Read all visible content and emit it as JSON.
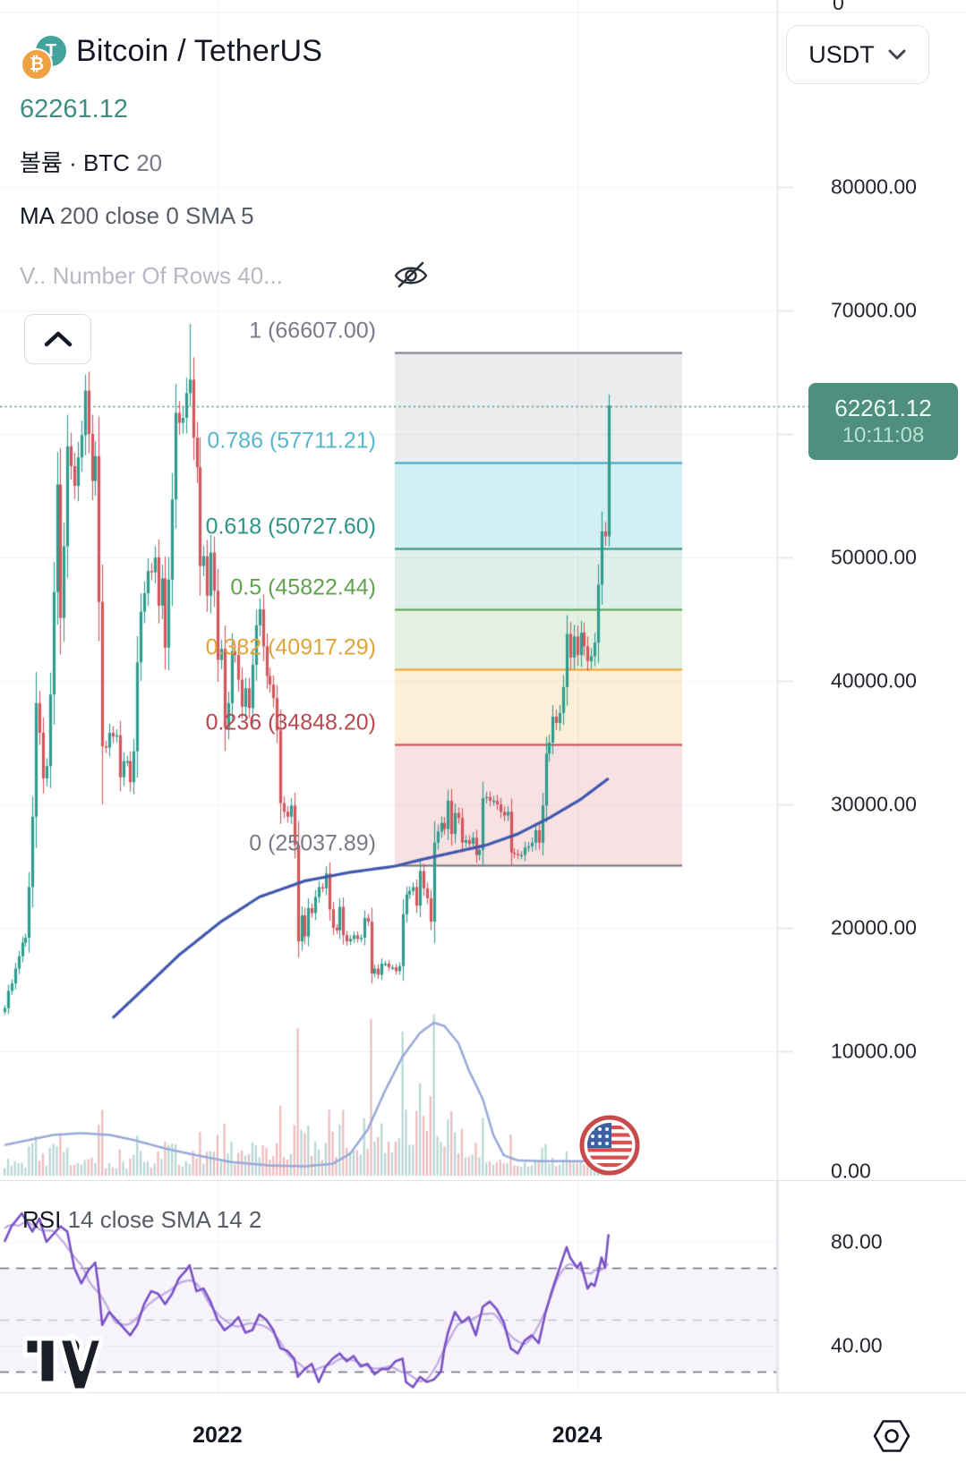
{
  "header": {
    "symbol": "Bitcoin / TetherUS",
    "last_price": "62261.12",
    "row2_label": "볼륨 · BTC",
    "row2_value": "20",
    "row3_prefix": "MA",
    "row3_rest": "200 close 0 SMA 5",
    "row4_text": "V.. Number Of Rows 40...",
    "currency_button": "USDT"
  },
  "icons": {
    "tether_glyph": "T",
    "bitcoin_glyph": "₿"
  },
  "price_scale": {
    "top_partial": "0",
    "labels": [
      {
        "text": "80000.00",
        "value": 80000
      },
      {
        "text": "70000.00",
        "value": 70000
      },
      {
        "text": "50000.00",
        "value": 50000
      },
      {
        "text": "40000.00",
        "value": 40000
      },
      {
        "text": "30000.00",
        "value": 30000
      },
      {
        "text": "20000.00",
        "value": 20000
      },
      {
        "text": "10000.00",
        "value": 10000
      }
    ],
    "volume_zero_label": {
      "text": "0.00"
    },
    "badge": {
      "price": "62261.12",
      "time": "10:11:08",
      "color": "#4e8f7e"
    }
  },
  "rsi_panel": {
    "title_prefix": "RSI",
    "title_rest": "14 close SMA 14 2",
    "labels": [
      {
        "text": "80.00",
        "value": 80
      },
      {
        "text": "40.00",
        "value": 40
      }
    ],
    "band": {
      "upper": 70,
      "mid": 50,
      "lower": 30
    },
    "line_color": "#7a52c5",
    "sma_color": "#c0abe4",
    "band_fill": "rgba(122,81,198,0.07)"
  },
  "time_axis": {
    "labels": [
      {
        "text": "2022",
        "week": 61
      },
      {
        "text": "2024",
        "week": 164
      }
    ]
  },
  "fib": {
    "levels": [
      {
        "level": "1",
        "price": "66607.00",
        "value": 66607.0,
        "line_color": "#787b86",
        "label_color": "#787b86",
        "fill": "rgba(133,136,145,0.16)"
      },
      {
        "level": "0.786",
        "price": "57711.21",
        "value": 57711.21,
        "line_color": "#3aa3bc",
        "label_color": "#58b6cb",
        "fill": "rgba(77,190,212,0.25)"
      },
      {
        "level": "0.618",
        "price": "50727.60",
        "value": 50727.6,
        "line_color": "#2a8d7b",
        "label_color": "#2f9386",
        "fill": "rgba(54,150,128,0.15)"
      },
      {
        "level": "0.5",
        "price": "45822.44",
        "value": 45822.44,
        "line_color": "#57a253",
        "label_color": "#61a24f",
        "fill": "rgba(118,184,101,0.20)"
      },
      {
        "level": "0.382",
        "price": "40917.29",
        "value": 40917.29,
        "line_color": "#eea12c",
        "label_color": "#e0a339",
        "fill": "rgba(247,184,72,0.22)"
      },
      {
        "level": "0.236",
        "price": "34848.20",
        "value": 34848.2,
        "line_color": "#bf4a4e",
        "label_color": "#b8494f",
        "fill": "rgba(219,106,114,0.20)"
      },
      {
        "level": "0",
        "price": "25037.89",
        "value": 25037.89,
        "line_color": "#6e717c",
        "label_color": "#787b86",
        "fill": null
      }
    ]
  },
  "chart_data": {
    "type": "bar",
    "subtype": "candlestick-weekly with volume, MA and RSI subpanel",
    "symbol": "BTCUSDT",
    "current_price": 62261.12,
    "x_axis": {
      "start": "2020-11",
      "end": "2024-02",
      "gridline_years": [
        "2022",
        "2024"
      ]
    },
    "y_axis": {
      "min": 0,
      "max": 95000,
      "grid_step": 10000
    },
    "weekly_closes_k": [
      13.5,
      14.9,
      15.5,
      16.7,
      17.7,
      18.8,
      19.2,
      23.3,
      29.0,
      38.2,
      35.8,
      32.1,
      33.1,
      38.9,
      47.2,
      55.9,
      45.1,
      50.9,
      59.0,
      57.4,
      55.8,
      58.1,
      59.9,
      63.5,
      60.0,
      56.2,
      58.2,
      46.4,
      34.7,
      34.6,
      35.8,
      35.5,
      35.6,
      32.2,
      33.5,
      33.5,
      31.8,
      34.3,
      41.5,
      45.6,
      47.1,
      48.9,
      48.8,
      50.0,
      46.1,
      48.3,
      42.7,
      48.2,
      54.7,
      61.7,
      60.9,
      61.3,
      63.3,
      64.4,
      59.7,
      57.3,
      49.3,
      50.1,
      46.9,
      50.4,
      47.3,
      41.7,
      42.6,
      36.2,
      38.2,
      42.4,
      42.1,
      40.1,
      37.9,
      39.4,
      37.8,
      41.3,
      44.5,
      45.8,
      42.8,
      40.4,
      39.7,
      38.6,
      36.0,
      30.1,
      29.4,
      29.0,
      29.9,
      26.7,
      18.9,
      21.0,
      19.3,
      21.6,
      21.2,
      22.5,
      23.3,
      23.2,
      24.4,
      21.5,
      20.0,
      19.8,
      21.7,
      19.4,
      18.9,
      19.1,
      19.4,
      19.1,
      19.2,
      20.8,
      20.5,
      16.3,
      16.7,
      16.2,
      17.1,
      17.1,
      16.8,
      16.8,
      16.5,
      16.9,
      21.1,
      22.7,
      23.0,
      23.3,
      21.8,
      24.6,
      23.2,
      22.4,
      20.5,
      26.9,
      27.8,
      28.5,
      28.0,
      30.3,
      27.6,
      29.3,
      28.9,
      26.9,
      27.1,
      26.8,
      27.3,
      25.9,
      26.3,
      30.5,
      30.6,
      30.3,
      30.3,
      30.0,
      29.4,
      29.1,
      29.4,
      26.1,
      26.0,
      25.9,
      25.9,
      26.5,
      26.6,
      26.9,
      27.9,
      26.9,
      29.9,
      34.1,
      35.0,
      37.1,
      36.6,
      37.4,
      39.5,
      43.8,
      41.9,
      43.6,
      42.1,
      43.9,
      42.8,
      41.6,
      42.0,
      43.1,
      47.8,
      52.1,
      51.7,
      62.3
    ],
    "wick_overrides": [
      {
        "i": 23,
        "high": 64.8
      },
      {
        "i": 28,
        "low": 30.0
      },
      {
        "i": 53,
        "high": 68.9
      },
      {
        "i": 84,
        "low": 17.6
      },
      {
        "i": 105,
        "low": 15.5
      },
      {
        "i": 173,
        "high": 63.2,
        "low": 50.9
      }
    ],
    "ma200_k": [
      [
        31,
        12.7
      ],
      [
        40,
        15.1
      ],
      [
        50,
        17.8
      ],
      [
        62,
        20.5
      ],
      [
        73,
        22.5
      ],
      [
        86,
        23.8
      ],
      [
        99,
        24.5
      ],
      [
        112,
        25.0
      ],
      [
        119,
        25.5
      ],
      [
        130,
        26.2
      ],
      [
        138,
        26.7
      ],
      [
        147,
        27.6
      ],
      [
        156,
        28.9
      ],
      [
        165,
        30.4
      ],
      [
        173,
        32.1
      ]
    ],
    "volume_profile": [
      [
        0,
        0.35
      ],
      [
        30,
        0.5
      ],
      [
        55,
        0.6
      ],
      [
        80,
        0.85
      ],
      [
        95,
        1.1
      ],
      [
        103,
        1.4
      ],
      [
        110,
        1.7
      ],
      [
        122,
        1.7
      ],
      [
        130,
        1.2
      ],
      [
        140,
        0.8
      ],
      [
        150,
        0.6
      ],
      [
        160,
        0.5
      ],
      [
        173,
        0.5
      ]
    ],
    "volume_ma": [
      [
        0,
        0.18
      ],
      [
        7,
        0.21
      ],
      [
        14,
        0.24
      ],
      [
        22,
        0.25
      ],
      [
        30,
        0.24
      ],
      [
        37,
        0.21
      ],
      [
        46,
        0.16
      ],
      [
        55,
        0.12
      ],
      [
        65,
        0.08
      ],
      [
        76,
        0.06
      ],
      [
        86,
        0.055
      ],
      [
        94,
        0.07
      ],
      [
        99,
        0.13
      ],
      [
        104,
        0.27
      ],
      [
        109,
        0.5
      ],
      [
        114,
        0.7
      ],
      [
        119,
        0.84
      ],
      [
        123,
        0.9
      ],
      [
        126,
        0.88
      ],
      [
        130,
        0.78
      ],
      [
        133,
        0.62
      ],
      [
        137,
        0.45
      ],
      [
        140,
        0.24
      ],
      [
        143,
        0.12
      ],
      [
        147,
        0.09
      ],
      [
        155,
        0.085
      ],
      [
        163,
        0.085
      ],
      [
        170,
        0.085
      ],
      [
        173,
        0.085
      ]
    ],
    "rsi_series": [
      [
        0,
        80
      ],
      [
        2,
        86
      ],
      [
        5,
        91
      ],
      [
        8,
        84
      ],
      [
        10,
        89
      ],
      [
        12,
        80
      ],
      [
        14,
        83
      ],
      [
        16,
        86
      ],
      [
        18,
        84
      ],
      [
        20,
        70
      ],
      [
        22,
        64
      ],
      [
        24,
        69
      ],
      [
        26,
        72
      ],
      [
        27,
        62
      ],
      [
        28,
        48
      ],
      [
        30,
        53
      ],
      [
        32,
        50
      ],
      [
        34,
        47
      ],
      [
        36,
        44
      ],
      [
        38,
        48
      ],
      [
        40,
        56
      ],
      [
        42,
        61
      ],
      [
        44,
        60
      ],
      [
        46,
        56
      ],
      [
        48,
        60
      ],
      [
        50,
        66
      ],
      [
        52,
        69
      ],
      [
        53,
        71
      ],
      [
        55,
        61
      ],
      [
        57,
        62
      ],
      [
        59,
        57
      ],
      [
        61,
        50
      ],
      [
        63,
        46
      ],
      [
        65,
        48
      ],
      [
        67,
        51
      ],
      [
        69,
        45
      ],
      [
        71,
        46
      ],
      [
        73,
        52
      ],
      [
        75,
        50
      ],
      [
        77,
        46
      ],
      [
        79,
        39
      ],
      [
        81,
        38
      ],
      [
        83,
        35
      ],
      [
        84,
        28
      ],
      [
        86,
        31
      ],
      [
        88,
        33
      ],
      [
        90,
        26
      ],
      [
        92,
        32
      ],
      [
        94,
        35
      ],
      [
        96,
        37
      ],
      [
        98,
        34
      ],
      [
        100,
        36
      ],
      [
        102,
        32
      ],
      [
        104,
        33
      ],
      [
        106,
        29
      ],
      [
        108,
        31
      ],
      [
        110,
        31
      ],
      [
        112,
        34
      ],
      [
        114,
        35
      ],
      [
        115,
        26
      ],
      [
        117,
        24
      ],
      [
        119,
        28
      ],
      [
        121,
        26
      ],
      [
        123,
        27
      ],
      [
        125,
        30
      ],
      [
        126,
        39
      ],
      [
        127,
        45
      ],
      [
        129,
        53
      ],
      [
        131,
        49
      ],
      [
        133,
        51
      ],
      [
        135,
        44
      ],
      [
        137,
        55
      ],
      [
        139,
        57
      ],
      [
        141,
        54
      ],
      [
        143,
        49
      ],
      [
        145,
        39
      ],
      [
        147,
        37
      ],
      [
        149,
        42
      ],
      [
        151,
        44
      ],
      [
        153,
        41
      ],
      [
        155,
        53
      ],
      [
        157,
        62
      ],
      [
        159,
        70
      ],
      [
        161,
        78
      ],
      [
        162,
        74
      ],
      [
        164,
        70
      ],
      [
        165,
        72
      ],
      [
        166,
        67
      ],
      [
        167,
        62
      ],
      [
        168,
        64
      ],
      [
        169,
        63
      ],
      [
        170,
        68
      ],
      [
        171,
        74
      ],
      [
        172,
        70
      ],
      [
        173,
        83
      ]
    ],
    "colors": {
      "up": "#2f9c8d",
      "down": "#d4555c",
      "vol_up": "rgba(96,165,155,0.45)",
      "vol_down": "rgba(215,120,126,0.5)",
      "ma200": "#4058ad",
      "volume_ma_line": "#98a9da",
      "grid": "#f1f3f8",
      "dotted_price_line": "#3f8d80"
    }
  }
}
